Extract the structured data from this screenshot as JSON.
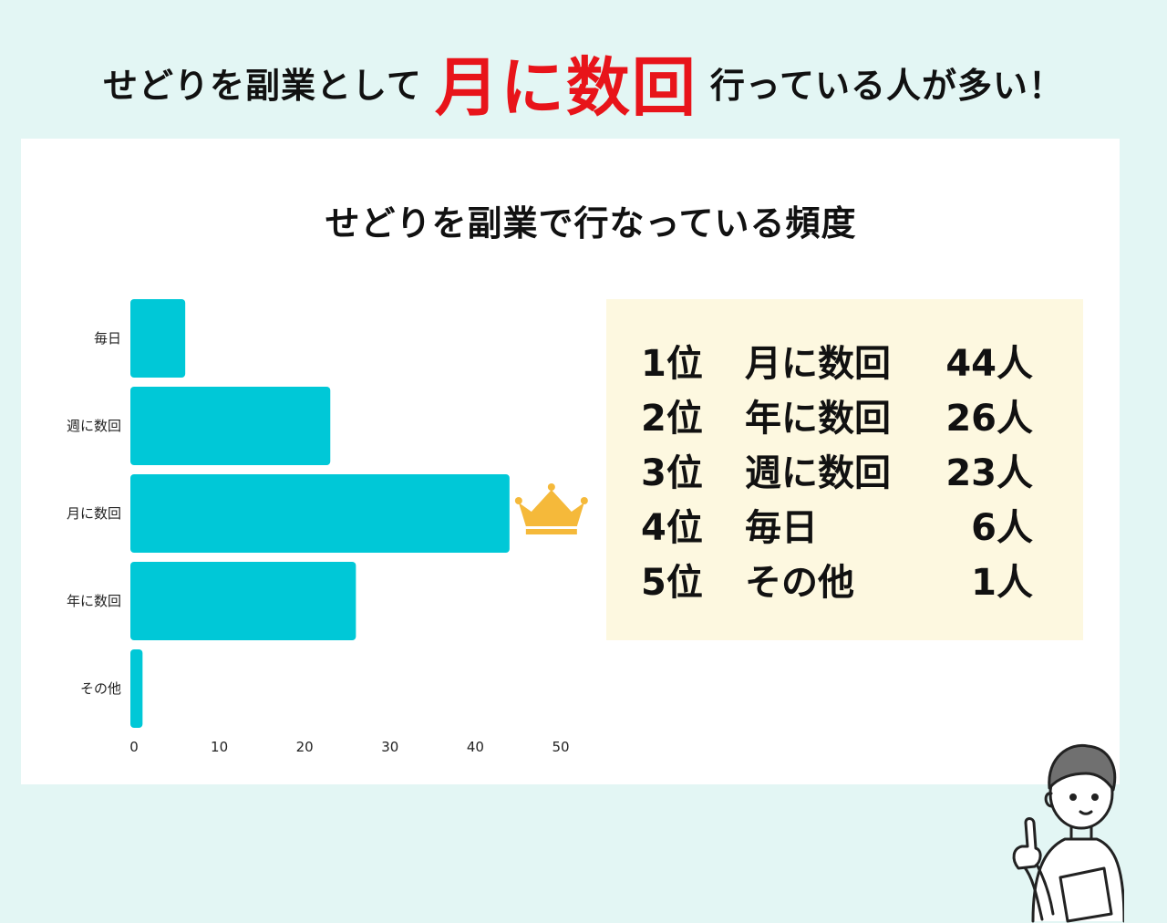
{
  "headline": {
    "part1": "せどりを副業として",
    "highlight": "月に数回",
    "part2": "行っている人が多い！",
    "highlight_color": "#e8141a"
  },
  "chart_data": {
    "type": "bar",
    "orientation": "horizontal",
    "title": "せどりを副業で行なっている頻度",
    "categories": [
      "毎日",
      "週に数回",
      "月に数回",
      "年に数回",
      "その他"
    ],
    "values": [
      6,
      23,
      44,
      26,
      1
    ],
    "xlim": [
      0,
      50
    ],
    "xticks": [
      "0",
      "10",
      "20",
      "30",
      "40",
      "50"
    ],
    "bar_color": "#00c8d7",
    "grid": false,
    "highlight_category": "月に数回",
    "highlight_icon": "crown-icon"
  },
  "ranking": [
    {
      "pos": "1位",
      "label": "月に数回",
      "count": "44人"
    },
    {
      "pos": "2位",
      "label": "年に数回",
      "count": "26人"
    },
    {
      "pos": "3位",
      "label": "週に数回",
      "count": "23人"
    },
    {
      "pos": "4位",
      "label": "毎日",
      "count": "6人"
    },
    {
      "pos": "5位",
      "label": "その他",
      "count": "1人"
    }
  ],
  "colors": {
    "page_bg": "#e3f6f4",
    "card_bg": "#ffffff",
    "ranking_bg": "#fdf8e0",
    "crown": "#f5b93a"
  },
  "illustration": "person-pointing-icon"
}
